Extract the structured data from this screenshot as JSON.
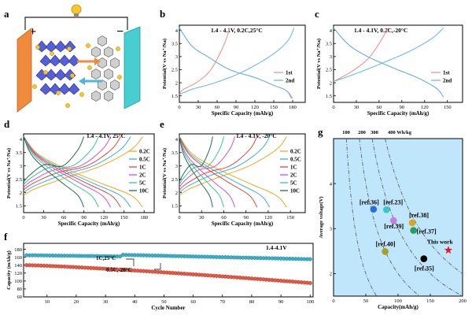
{
  "panels": {
    "a": {
      "letter": "a",
      "plus": "+",
      "minus": "−"
    },
    "b": {
      "letter": "b",
      "cond": "1.4 - 4.1V, 0.2C,25°C"
    },
    "c": {
      "letter": "c",
      "cond": "1.4 - 4.1V, 0.2C,-20°C"
    },
    "d": {
      "letter": "d",
      "cond": "1.4 - 4.1V, 25°C"
    },
    "e": {
      "letter": "e",
      "cond": "1.4 - 4.1V, -20°C"
    },
    "f": {
      "letter": "f",
      "cond": "1.4-4.1V",
      "ann1": "1C,25°C",
      "ann2": "0.5C,-20°C"
    },
    "g": {
      "letter": "g",
      "this_work": "This work"
    }
  },
  "colors": {
    "first": "#f08a80",
    "second": "#5bb8e8",
    "rate": [
      "#f5a623",
      "#3ab0d8",
      "#e8433a",
      "#d44fd0",
      "#38c98a",
      "#1f6f4a"
    ],
    "cyc_hot": "#3ab0c8",
    "cyc_cold": "#e35a45",
    "g_bg": "#bfe6fb"
  },
  "chart_data": [
    {
      "id": "b",
      "type": "line",
      "xlabel": "Specific Capacity (mAh/g)",
      "ylabel": "Potential(V vs Na⁺/Na)",
      "xlim": [
        0,
        200
      ],
      "ylim": [
        1.25,
        4.2
      ],
      "xticks": [
        0,
        30,
        60,
        90,
        120,
        150,
        180
      ],
      "yticks": [
        1.5,
        2.0,
        2.5,
        3.0,
        3.5,
        4.0
      ],
      "legend": [
        "1st",
        "2nd"
      ],
      "series": [
        {
          "name": "1st",
          "x": [
            0,
            5,
            15,
            30,
            50,
            70,
            80
          ],
          "y": [
            1.55,
            1.72,
            1.85,
            2.05,
            2.5,
            3.4,
            4.1
          ]
        },
        {
          "name": "1st",
          "x": [
            0,
            20,
            45,
            80,
            120,
            150,
            170,
            180
          ],
          "y": [
            4.1,
            3.4,
            3.0,
            2.5,
            2.2,
            1.9,
            1.7,
            1.4
          ]
        },
        {
          "name": "2nd",
          "x": [
            0,
            20,
            50,
            90,
            130,
            160,
            175,
            182
          ],
          "y": [
            1.55,
            1.75,
            1.95,
            2.3,
            2.8,
            3.3,
            3.7,
            4.1
          ]
        },
        {
          "name": "2nd",
          "x": [
            0,
            20,
            45,
            80,
            120,
            150,
            170,
            178
          ],
          "y": [
            4.1,
            3.4,
            3.0,
            2.5,
            2.2,
            1.9,
            1.7,
            1.4
          ]
        }
      ]
    },
    {
      "id": "c",
      "type": "line",
      "xlabel": "Specific Capacity (mAh/g)",
      "ylabel": "Potential(V vs Na⁺/Na)",
      "xlim": [
        0,
        170
      ],
      "ylim": [
        1.25,
        4.2
      ],
      "xticks": [
        0,
        30,
        60,
        90,
        120,
        150
      ],
      "yticks": [
        1.5,
        2.0,
        2.5,
        3.0,
        3.5,
        4.0
      ],
      "legend": [
        "1st",
        "2nd"
      ],
      "series": [
        {
          "name": "1st",
          "x": [
            0,
            10,
            25,
            45,
            60,
            72
          ],
          "y": [
            2.05,
            2.2,
            2.45,
            2.9,
            3.5,
            4.1
          ]
        },
        {
          "name": "1st",
          "x": [
            0,
            20,
            45,
            80,
            110,
            135,
            145
          ],
          "y": [
            4.1,
            3.45,
            3.0,
            2.55,
            2.2,
            1.8,
            1.45
          ]
        },
        {
          "name": "2nd",
          "x": [
            0,
            25,
            60,
            100,
            130,
            145
          ],
          "y": [
            2.05,
            2.3,
            2.7,
            3.2,
            3.7,
            4.1
          ]
        },
        {
          "name": "2nd",
          "x": [
            0,
            20,
            45,
            80,
            110,
            135,
            145
          ],
          "y": [
            4.1,
            3.45,
            3.0,
            2.55,
            2.2,
            1.8,
            1.45
          ]
        }
      ]
    },
    {
      "id": "d",
      "type": "line",
      "xlabel": "Specific Capacity (mAh/g)",
      "ylabel": "Potential(V vs Na⁺/Na)",
      "xlim": [
        0,
        195
      ],
      "ylim": [
        1.25,
        4.2
      ],
      "xticks": [
        0,
        30,
        60,
        90,
        120,
        150,
        180
      ],
      "yticks": [
        1.5,
        2.0,
        2.5,
        3.0,
        3.5,
        4.0
      ],
      "legend": [
        "0.2C",
        "0.5C",
        "1C",
        "2C",
        "5C",
        "10C"
      ],
      "series": [
        {
          "name": "0.2C",
          "cap": 178
        },
        {
          "name": "0.5C",
          "cap": 160
        },
        {
          "name": "1C",
          "cap": 145
        },
        {
          "name": "2C",
          "cap": 130
        },
        {
          "name": "5C",
          "cap": 112
        },
        {
          "name": "10C",
          "cap": 90
        }
      ]
    },
    {
      "id": "e",
      "type": "line",
      "xlabel": "Specific Capacity (mAh/g)",
      "ylabel": "Potential(V vs Na⁺/Na)",
      "xlim": [
        0,
        170
      ],
      "ylim": [
        1.25,
        4.2
      ],
      "xticks": [
        0,
        30,
        60,
        90,
        120,
        150
      ],
      "yticks": [
        1.5,
        2.0,
        2.5,
        3.0,
        3.5,
        4.0
      ],
      "legend": [
        "0.2C",
        "0.5C",
        "1C",
        "2C",
        "5C",
        "10C"
      ],
      "series": [
        {
          "name": "0.2C",
          "cap": 145
        },
        {
          "name": "0.5C",
          "cap": 122
        },
        {
          "name": "1C",
          "cap": 105
        },
        {
          "name": "2C",
          "cap": 75
        },
        {
          "name": "5C",
          "cap": 60
        },
        {
          "name": "10C",
          "cap": 45
        }
      ]
    },
    {
      "id": "f",
      "type": "scatter",
      "xlabel": "Cycle Number",
      "ylabel": "Capacity (mAh/g)",
      "xlim": [
        2,
        101
      ],
      "ylim": [
        60,
        195
      ],
      "xticks": [
        10,
        20,
        30,
        40,
        50,
        60,
        70,
        80,
        90,
        100
      ],
      "yticks": [
        60,
        80,
        100,
        120,
        140,
        160,
        180
      ],
      "series": [
        {
          "name": "1C,25°C",
          "start": 165,
          "mid": 162,
          "jump_at": 36,
          "jump_to": 166,
          "end": 155
        },
        {
          "name": "0.5C,-20°C",
          "start": 140,
          "end": 95
        }
      ]
    },
    {
      "id": "g",
      "type": "scatter",
      "xlabel": "Capacity(mAh/g)",
      "ylabel": "Average voltage(V)",
      "xlim": [
        0,
        200
      ],
      "ylim": [
        1.5,
        5.0
      ],
      "xticks": [
        0,
        50,
        100,
        150,
        200
      ],
      "yticks": [
        2,
        3,
        4
      ],
      "top_labels": [
        "100",
        "200",
        "300",
        "400 Wh/kg"
      ],
      "energy_curves": [
        100,
        200,
        300,
        400
      ],
      "points": [
        {
          "label": "[ref.36]",
          "x": 62,
          "y": 3.43,
          "color": "#2a6fd6"
        },
        {
          "label": "[ref.23]",
          "x": 82,
          "y": 3.42,
          "color": "#3cc6c8"
        },
        {
          "label": "[ref.39]",
          "x": 93,
          "y": 3.18,
          "color": "#c77de0"
        },
        {
          "label": "[ref.38]",
          "x": 122,
          "y": 3.13,
          "color": "#e0a21e"
        },
        {
          "label": "[ref.37]",
          "x": 124,
          "y": 2.96,
          "color": "#22a060"
        },
        {
          "label": "[ref.40]",
          "x": 80,
          "y": 2.49,
          "color": "#a8a020"
        },
        {
          "label": "[ref.35]",
          "x": 140,
          "y": 2.33,
          "color": "#000000"
        },
        {
          "label": "This work",
          "x": 178,
          "y": 2.52,
          "color": "#e8191f",
          "marker": "star"
        }
      ]
    }
  ]
}
